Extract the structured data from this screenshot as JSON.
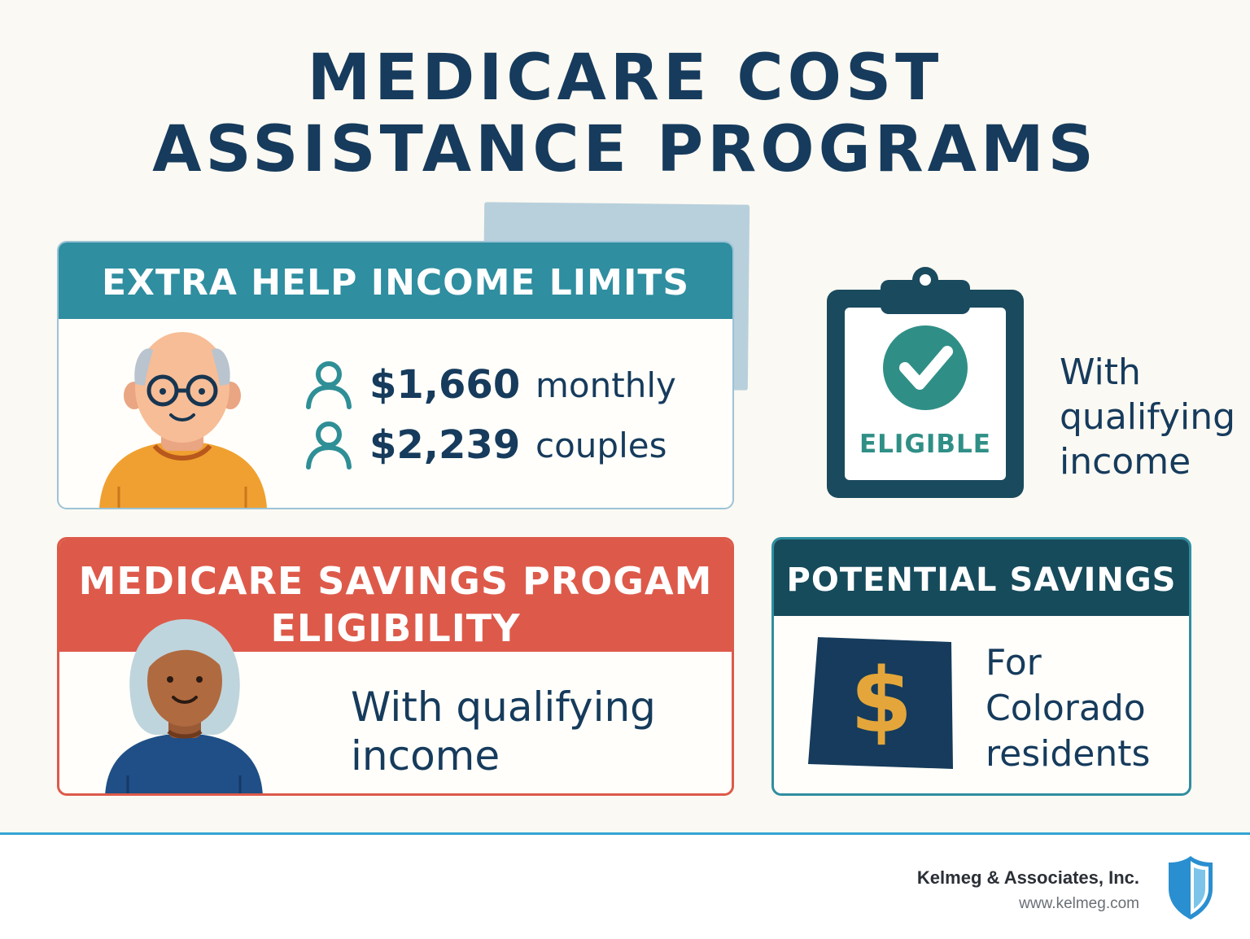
{
  "title": {
    "line1": "MEDICARE COST",
    "line2": "ASSISTANCE PROGRAMS"
  },
  "extra_help": {
    "heading": "EXTRA HELP INCOME LIMITS",
    "rows": [
      {
        "amount": "$1,660",
        "unit": "monthly",
        "icon": "person-icon"
      },
      {
        "amount": "$2,239",
        "unit": "couples",
        "icon": "person-icon"
      }
    ],
    "illustration": "elderly-man-avatar"
  },
  "eligibility": {
    "badge": "ELIGIBLE",
    "icon": "clipboard-check-icon",
    "text_line1": "With",
    "text_line2": "qualifying",
    "text_line3": "income"
  },
  "msp": {
    "heading_line1": "MEDICARE SAVINGS PROGAM",
    "heading_line2": "ELIGIBILITY",
    "text_line1": "With qualifying",
    "text_line2": "income",
    "illustration": "elderly-woman-avatar"
  },
  "savings": {
    "heading": "POTENTIAL SAVINGS",
    "icon": "colorado-dollar-icon",
    "text_line1": "For",
    "text_line2": "Colorado",
    "text_line3": "residents"
  },
  "footer": {
    "company": "Kelmeg & Associates, Inc.",
    "website": "www.kelmeg.com",
    "logo": "shield-logo-icon"
  },
  "colors": {
    "navy": "#163b5c",
    "teal": "#2f8ea0",
    "red": "#dd5a4a",
    "dark_teal": "#164b5b",
    "gold": "#e4a63a"
  }
}
